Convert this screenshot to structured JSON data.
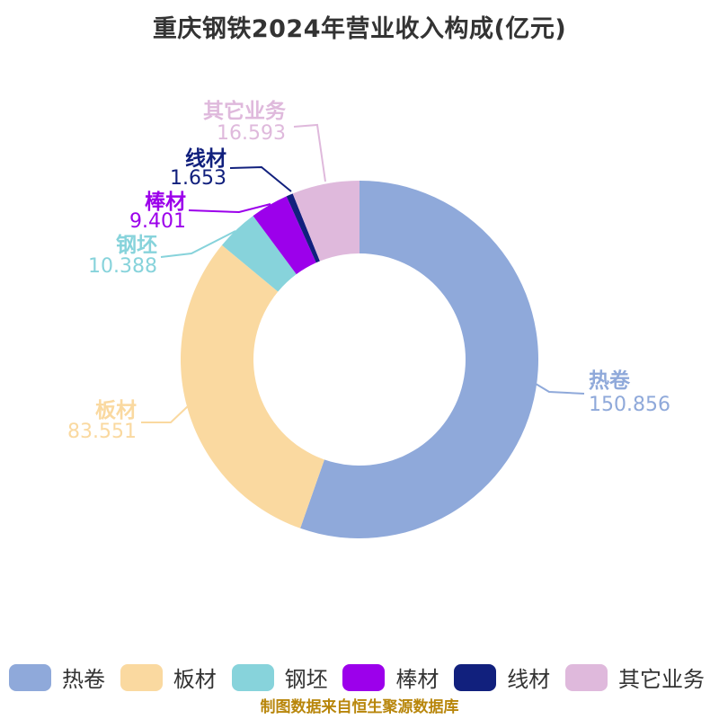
{
  "title": "重庆钢铁2024年营业收入构成(亿元)",
  "footer_note": "制图数据来自恒生聚源数据库",
  "chart_data": {
    "type": "pie",
    "subtype": "donut",
    "title": "重庆钢铁2024年营业收入构成(亿元)",
    "unit": "亿元",
    "categories": [
      "热卷",
      "板材",
      "钢坯",
      "棒材",
      "线材",
      "其它业务"
    ],
    "values": [
      150.856,
      83.551,
      10.388,
      9.401,
      1.653,
      16.593
    ],
    "value_labels": [
      "150.856",
      "83.551",
      "10.388",
      "9.401",
      "1.653",
      "16.593"
    ],
    "colors": [
      "#8FA9DA",
      "#FAD9A0",
      "#87D3DB",
      "#9C00EB",
      "#11207D",
      "#DFB9DC"
    ],
    "total": 272.442,
    "start_angle_deg": 0,
    "direction": "clockwise",
    "inner_radius_ratio": 0.59,
    "labels_on_chart": true,
    "label_line_color_follows_slice": true,
    "legend_position": "bottom",
    "background_color": "#FFFFFF",
    "title_color": "#333333",
    "legend_text_color": "#333333",
    "footer_color": "#B8860B"
  },
  "legend": {
    "items": [
      {
        "label": "热卷",
        "color": "#8FA9DA"
      },
      {
        "label": "板材",
        "color": "#FAD9A0"
      },
      {
        "label": "钢坯",
        "color": "#87D3DB"
      },
      {
        "label": "棒材",
        "color": "#9C00EB"
      },
      {
        "label": "线材",
        "color": "#11207D"
      },
      {
        "label": "其它业务",
        "color": "#DFB9DC"
      }
    ]
  }
}
